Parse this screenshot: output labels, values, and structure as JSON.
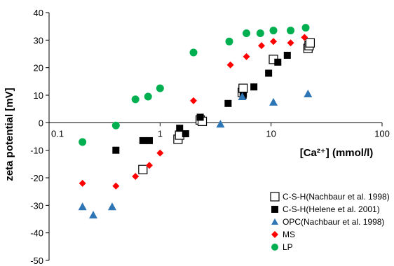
{
  "chart_data": {
    "type": "scatter",
    "title": "",
    "xlabel": "[Ca²⁺] (mmol/l)",
    "ylabel": "zeta potential [mV]",
    "xscale": "log",
    "xlim": [
      0.1,
      100
    ],
    "ylim": [
      -50,
      40
    ],
    "xticks": [
      0.1,
      1,
      10,
      100
    ],
    "xtick_labels": [
      "0.1",
      "1",
      "10",
      "100"
    ],
    "yticks": [
      -50,
      -40,
      -30,
      -20,
      -10,
      0,
      10,
      20,
      30,
      40
    ],
    "ytick_labels": [
      "-50",
      "-40",
      "-30",
      "-20",
      "-10",
      "0",
      "10",
      "20",
      "30",
      "40"
    ],
    "grid": false,
    "legend_position": "bottom-right",
    "series": [
      {
        "name": "C-S-H(Nachbaur et al. 1998)",
        "marker": "square-open",
        "color": "#000000",
        "points": [
          {
            "x": 0.7,
            "y": -17
          },
          {
            "x": 1.45,
            "y": -6
          },
          {
            "x": 1.5,
            "y": -4.5
          },
          {
            "x": 2.3,
            "y": 1
          },
          {
            "x": 2.4,
            "y": 0.5
          },
          {
            "x": 5.5,
            "y": 11
          },
          {
            "x": 5.6,
            "y": 12.5
          },
          {
            "x": 10.5,
            "y": 23
          },
          {
            "x": 21.5,
            "y": 27
          },
          {
            "x": 22,
            "y": 28
          },
          {
            "x": 22.5,
            "y": 29
          }
        ]
      },
      {
        "name": "C-S-H(Helene et al. 2001)",
        "marker": "square-filled",
        "color": "#000000",
        "points": [
          {
            "x": 0.4,
            "y": -10
          },
          {
            "x": 0.7,
            "y": -6.5
          },
          {
            "x": 0.8,
            "y": -6.5
          },
          {
            "x": 1.5,
            "y": -2
          },
          {
            "x": 1.7,
            "y": -4
          },
          {
            "x": 2.3,
            "y": 2
          },
          {
            "x": 4.1,
            "y": 7
          },
          {
            "x": 5.6,
            "y": 10
          },
          {
            "x": 7,
            "y": 13
          },
          {
            "x": 9.5,
            "y": 18
          },
          {
            "x": 11.5,
            "y": 22
          },
          {
            "x": 14,
            "y": 24.5
          }
        ]
      },
      {
        "name": "OPC(Nachbaur et al. 1998)",
        "marker": "triangle",
        "color": "#2e75b6",
        "points": [
          {
            "x": 0.2,
            "y": -30.5
          },
          {
            "x": 0.25,
            "y": -33.5
          },
          {
            "x": 0.37,
            "y": -30.5
          },
          {
            "x": 3.5,
            "y": -0.5
          },
          {
            "x": 5.5,
            "y": 9.5
          },
          {
            "x": 10.5,
            "y": 7.5
          },
          {
            "x": 21.5,
            "y": 10.5
          }
        ]
      },
      {
        "name": "MS",
        "marker": "diamond",
        "color": "#ff0000",
        "points": [
          {
            "x": 0.2,
            "y": -22
          },
          {
            "x": 0.4,
            "y": -23
          },
          {
            "x": 0.6,
            "y": -19.5
          },
          {
            "x": 0.8,
            "y": -15.5
          },
          {
            "x": 1,
            "y": -11
          },
          {
            "x": 2,
            "y": 8
          },
          {
            "x": 4.3,
            "y": 21
          },
          {
            "x": 6,
            "y": 24
          },
          {
            "x": 8.2,
            "y": 28
          },
          {
            "x": 10.5,
            "y": 29.5
          },
          {
            "x": 15,
            "y": 29
          },
          {
            "x": 20,
            "y": 31
          }
        ]
      },
      {
        "name": "LP",
        "marker": "circle",
        "color": "#00b050",
        "points": [
          {
            "x": 0.2,
            "y": -7
          },
          {
            "x": 0.4,
            "y": -1
          },
          {
            "x": 0.6,
            "y": 8.5
          },
          {
            "x": 0.78,
            "y": 9.5
          },
          {
            "x": 1,
            "y": 12.5
          },
          {
            "x": 2,
            "y": 25.5
          },
          {
            "x": 4.2,
            "y": 29.5
          },
          {
            "x": 6,
            "y": 32.5
          },
          {
            "x": 8,
            "y": 32.5
          },
          {
            "x": 10.5,
            "y": 33.5
          },
          {
            "x": 15,
            "y": 33.5
          },
          {
            "x": 20.5,
            "y": 34.5
          }
        ]
      }
    ]
  }
}
